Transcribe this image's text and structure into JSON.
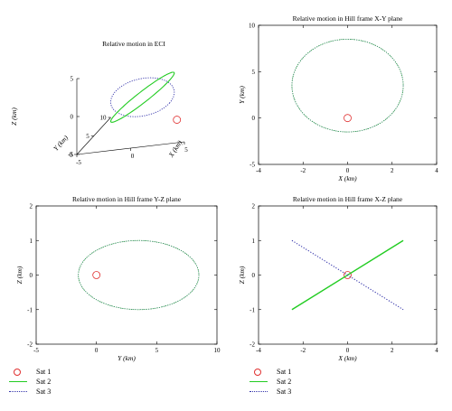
{
  "colors": {
    "sat1": "#e03030",
    "sat2": "#22cc22",
    "sat3": "#3333aa",
    "ellipse": "#2a8a5a"
  },
  "legend": {
    "items": [
      {
        "label": "Sat 1",
        "symbol": "circle",
        "color": "#e03030"
      },
      {
        "label": "Sat 2",
        "symbol": "solid-line",
        "color": "#22cc22"
      },
      {
        "label": "Sat 3",
        "symbol": "dotted-line",
        "color": "#3333aa"
      }
    ]
  },
  "chart_data": [
    {
      "type": "line3d",
      "title": "Relative motion in ECI",
      "xlabel": "X (km)",
      "ylabel": "Y (km)",
      "zlabel": "Z (km)",
      "xlim": [
        -5,
        5
      ],
      "ylim": [
        0,
        10
      ],
      "zlim": [
        -5,
        5
      ],
      "xticks": [
        "-5",
        "0",
        "5"
      ],
      "yticks": [
        "0",
        "5",
        "10"
      ],
      "zticks": [
        "-5",
        "0",
        "5"
      ],
      "grid": false,
      "series": [
        {
          "name": "Sat 1",
          "style": "marker",
          "points": [
            [
              0,
              0,
              0
            ]
          ]
        },
        {
          "name": "Sat 2",
          "style": "solid",
          "shape": "inclined ellipse",
          "semi_axes": [
            2.5,
            5,
            1
          ]
        },
        {
          "name": "Sat 3",
          "style": "dotted",
          "shape": "inclined ellipse",
          "semi_axes": [
            2.5,
            5,
            1
          ]
        }
      ]
    },
    {
      "type": "line",
      "title": "Relative motion in Hill frame X-Y plane",
      "xlabel": "X (km)",
      "ylabel": "Y (km)",
      "xlim": [
        -4,
        4
      ],
      "ylim": [
        -5,
        10
      ],
      "xticks": [
        "-4",
        "-2",
        "0",
        "2",
        "4"
      ],
      "yticks": [
        "-5",
        "0",
        "5",
        "10"
      ],
      "grid": false,
      "series": [
        {
          "name": "Sat 1",
          "style": "marker",
          "x": [
            0
          ],
          "y": [
            0
          ]
        },
        {
          "name": "Sat 2",
          "style": "solid",
          "shape": "ellipse",
          "center": [
            0,
            3.5
          ],
          "semi_axes": [
            2.5,
            5
          ]
        },
        {
          "name": "Sat 3",
          "style": "dotted",
          "shape": "ellipse",
          "center": [
            0,
            3.5
          ],
          "semi_axes": [
            2.5,
            5
          ]
        }
      ]
    },
    {
      "type": "line",
      "title": "Relative motion in Hill frame Y-Z plane",
      "xlabel": "Y (km)",
      "ylabel": "Z (km)",
      "xlim": [
        -5,
        10
      ],
      "ylim": [
        -2,
        2
      ],
      "xticks": [
        "-5",
        "0",
        "5",
        "10"
      ],
      "yticks": [
        "-2",
        "-1",
        "0",
        "1",
        "2"
      ],
      "grid": false,
      "series": [
        {
          "name": "Sat 1",
          "style": "marker",
          "x": [
            0
          ],
          "y": [
            0
          ]
        },
        {
          "name": "Sat 2",
          "style": "solid",
          "shape": "ellipse",
          "center": [
            3.5,
            0
          ],
          "semi_axes": [
            5,
            1
          ]
        },
        {
          "name": "Sat 3",
          "style": "dotted",
          "shape": "ellipse",
          "center": [
            3.5,
            0
          ],
          "semi_axes": [
            5,
            1
          ]
        }
      ]
    },
    {
      "type": "line",
      "title": "Relative motion in Hill frame X-Z plane",
      "xlabel": "X (km)",
      "ylabel": "Z (km)",
      "xlim": [
        -4,
        4
      ],
      "ylim": [
        -2,
        2
      ],
      "xticks": [
        "-4",
        "-2",
        "0",
        "2",
        "4"
      ],
      "yticks": [
        "-2",
        "-1",
        "0",
        "1",
        "2"
      ],
      "grid": false,
      "series": [
        {
          "name": "Sat 1",
          "style": "marker",
          "x": [
            0
          ],
          "y": [
            0
          ]
        },
        {
          "name": "Sat 2",
          "style": "solid",
          "x": [
            -2.5,
            2.5
          ],
          "y": [
            -1,
            1
          ]
        },
        {
          "name": "Sat 3",
          "style": "dotted",
          "x": [
            -2.5,
            2.5
          ],
          "y": [
            1,
            -1
          ]
        }
      ]
    }
  ]
}
